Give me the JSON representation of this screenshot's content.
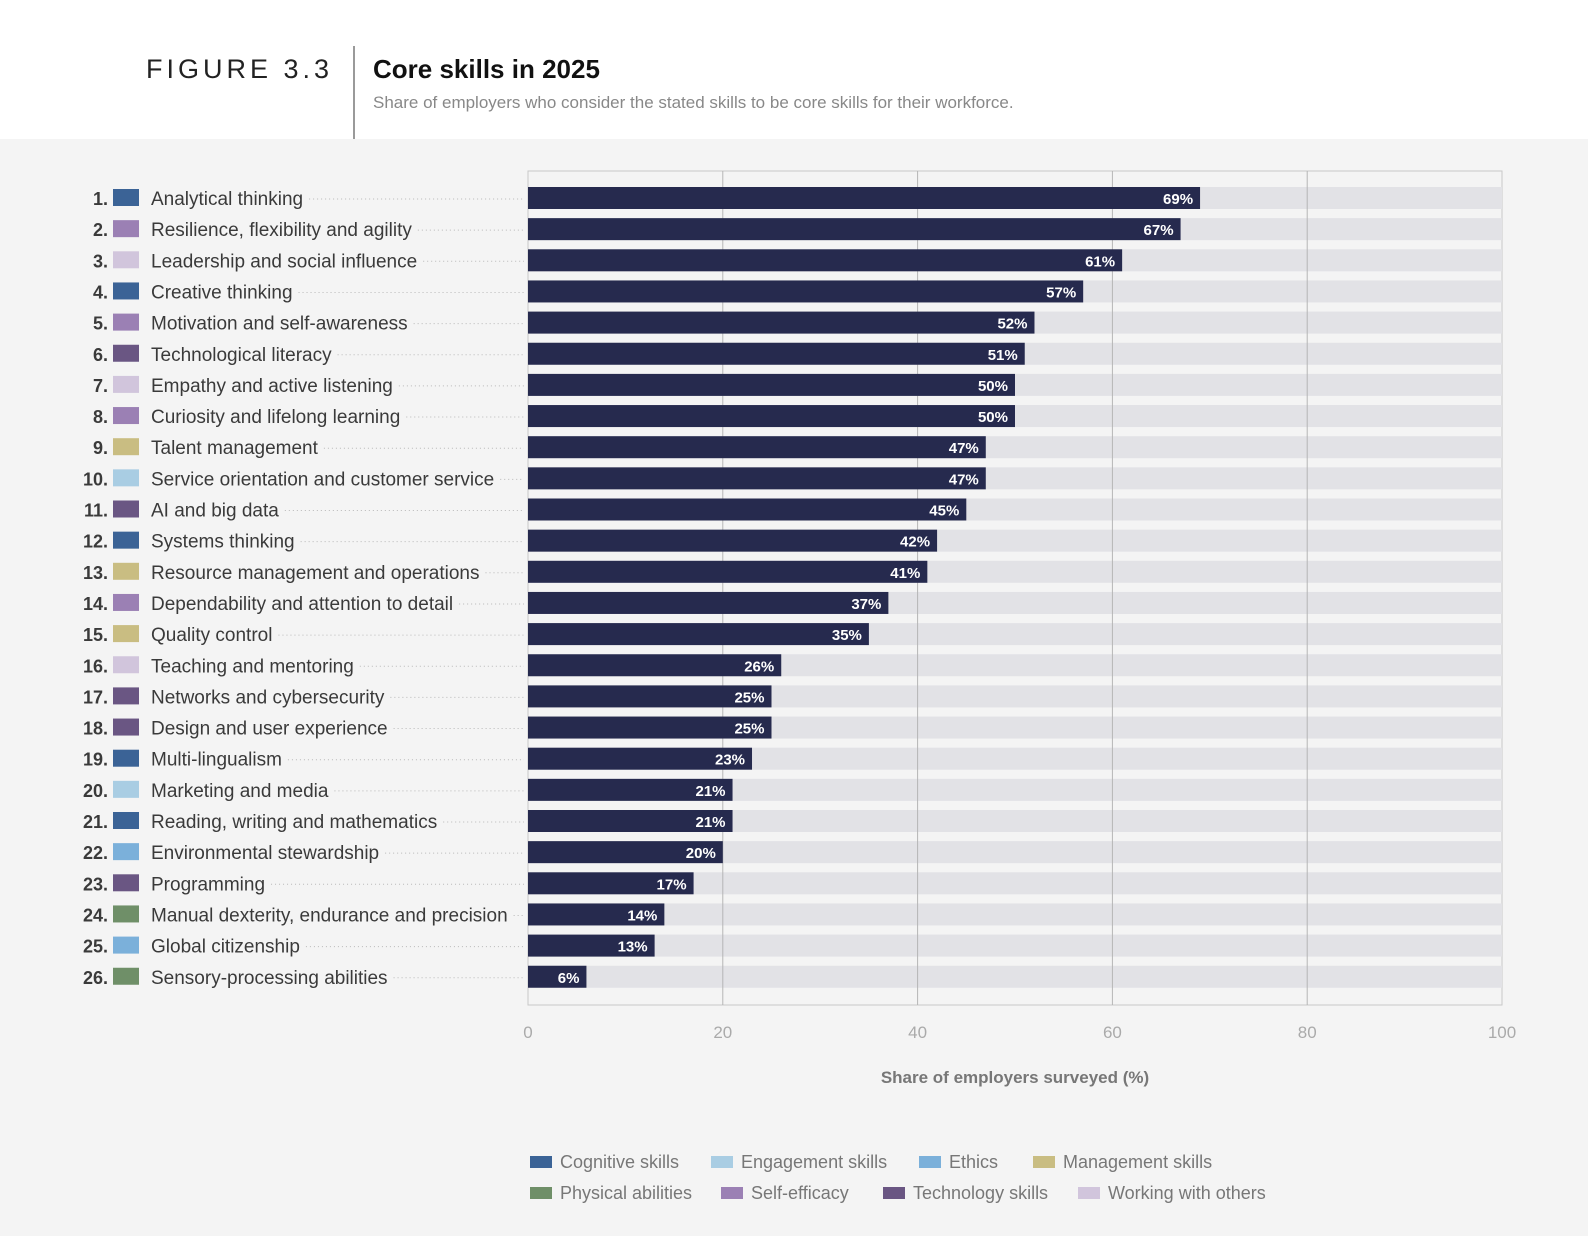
{
  "figure_label": "FIGURE 3.3",
  "title": "Core skills in 2025",
  "subtitle": "Share of employers who consider the stated skills to be core skills for their workforce.",
  "colors": {
    "bar": "#262a4e",
    "track": "#e2e2e6",
    "grid": "#b5b5b5",
    "cognitive": "#3b6396",
    "engagement": "#a9cde3",
    "ethics": "#7bb0da",
    "management": "#c9bd82",
    "physical": "#6f8f68",
    "self_efficacy": "#9b80b4",
    "technology": "#6a5683",
    "working_with_others": "#d1c5dc"
  },
  "chart_data": {
    "type": "bar",
    "orientation": "horizontal",
    "xlabel": "Share of employers surveyed (%)",
    "xlim": [
      0,
      100
    ],
    "xticks": [
      0,
      20,
      40,
      60,
      80,
      100
    ],
    "grid": true,
    "legend_position": "bottom",
    "legend": [
      {
        "key": "cognitive",
        "label": "Cognitive skills"
      },
      {
        "key": "engagement",
        "label": "Engagement skills"
      },
      {
        "key": "ethics",
        "label": "Ethics"
      },
      {
        "key": "management",
        "label": "Management skills"
      },
      {
        "key": "physical",
        "label": "Physical abilities"
      },
      {
        "key": "self_efficacy",
        "label": "Self-efficacy"
      },
      {
        "key": "technology",
        "label": "Technology skills"
      },
      {
        "key": "working_with_others",
        "label": "Working with others"
      }
    ],
    "rows": [
      {
        "rank": "1.",
        "label": "Analytical thinking",
        "category": "cognitive",
        "value": 69,
        "value_label": "69%"
      },
      {
        "rank": "2.",
        "label": "Resilience, flexibility and agility",
        "category": "self_efficacy",
        "value": 67,
        "value_label": "67%"
      },
      {
        "rank": "3.",
        "label": "Leadership and social influence",
        "category": "working_with_others",
        "value": 61,
        "value_label": "61%"
      },
      {
        "rank": "4.",
        "label": "Creative thinking",
        "category": "cognitive",
        "value": 57,
        "value_label": "57%"
      },
      {
        "rank": "5.",
        "label": "Motivation and self-awareness",
        "category": "self_efficacy",
        "value": 52,
        "value_label": "52%"
      },
      {
        "rank": "6.",
        "label": "Technological literacy",
        "category": "technology",
        "value": 51,
        "value_label": "51%"
      },
      {
        "rank": "7.",
        "label": "Empathy and active listening",
        "category": "working_with_others",
        "value": 50,
        "value_label": "50%"
      },
      {
        "rank": "8.",
        "label": "Curiosity and lifelong learning",
        "category": "self_efficacy",
        "value": 50,
        "value_label": "50%"
      },
      {
        "rank": "9.",
        "label": "Talent management",
        "category": "management",
        "value": 47,
        "value_label": "47%"
      },
      {
        "rank": "10.",
        "label": "Service orientation and customer service",
        "category": "engagement",
        "value": 47,
        "value_label": "47%"
      },
      {
        "rank": "11.",
        "label": "AI and big data",
        "category": "technology",
        "value": 45,
        "value_label": "45%"
      },
      {
        "rank": "12.",
        "label": "Systems thinking",
        "category": "cognitive",
        "value": 42,
        "value_label": "42%"
      },
      {
        "rank": "13.",
        "label": "Resource management and operations",
        "category": "management",
        "value": 41,
        "value_label": "41%"
      },
      {
        "rank": "14.",
        "label": "Dependability and attention to detail",
        "category": "self_efficacy",
        "value": 37,
        "value_label": "37%"
      },
      {
        "rank": "15.",
        "label": "Quality control",
        "category": "management",
        "value": 35,
        "value_label": "35%"
      },
      {
        "rank": "16.",
        "label": "Teaching and mentoring",
        "category": "working_with_others",
        "value": 26,
        "value_label": "26%"
      },
      {
        "rank": "17.",
        "label": "Networks and cybersecurity",
        "category": "technology",
        "value": 25,
        "value_label": "25%"
      },
      {
        "rank": "18.",
        "label": "Design and user experience",
        "category": "technology",
        "value": 25,
        "value_label": "25%"
      },
      {
        "rank": "19.",
        "label": "Multi-lingualism",
        "category": "cognitive",
        "value": 23,
        "value_label": "23%"
      },
      {
        "rank": "20.",
        "label": "Marketing and media",
        "category": "engagement",
        "value": 21,
        "value_label": "21%"
      },
      {
        "rank": "21.",
        "label": "Reading, writing and mathematics",
        "category": "cognitive",
        "value": 21,
        "value_label": "21%"
      },
      {
        "rank": "22.",
        "label": "Environmental stewardship",
        "category": "ethics",
        "value": 20,
        "value_label": "20%"
      },
      {
        "rank": "23.",
        "label": "Programming",
        "category": "technology",
        "value": 17,
        "value_label": "17%"
      },
      {
        "rank": "24.",
        "label": "Manual dexterity, endurance and precision",
        "category": "physical",
        "value": 14,
        "value_label": "14%"
      },
      {
        "rank": "25.",
        "label": "Global citizenship",
        "category": "ethics",
        "value": 13,
        "value_label": "13%"
      },
      {
        "rank": "26.",
        "label": "Sensory-processing abilities",
        "category": "physical",
        "value": 6,
        "value_label": "6%"
      }
    ]
  }
}
